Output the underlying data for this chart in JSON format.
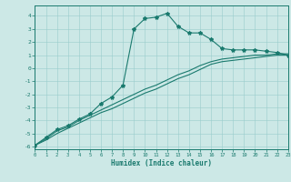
{
  "xlabel": "Humidex (Indice chaleur)",
  "bg_color": "#cce8e6",
  "line_color": "#1a7a6e",
  "grid_color": "#99cccc",
  "xlim": [
    0,
    23
  ],
  "ylim": [
    -6.2,
    4.8
  ],
  "xticks": [
    0,
    1,
    2,
    3,
    4,
    5,
    6,
    7,
    8,
    9,
    10,
    11,
    12,
    13,
    14,
    15,
    16,
    17,
    18,
    19,
    20,
    21,
    22,
    23
  ],
  "yticks": [
    -6,
    -5,
    -4,
    -3,
    -2,
    -1,
    0,
    1,
    2,
    3,
    4
  ],
  "line_straight1": {
    "x": [
      0,
      1,
      2,
      3,
      4,
      5,
      6,
      7,
      8,
      9,
      10,
      11,
      12,
      13,
      14,
      15,
      16,
      17,
      18,
      19,
      20,
      21,
      22,
      23
    ],
    "y": [
      -5.9,
      -5.5,
      -5.0,
      -4.6,
      -4.2,
      -3.8,
      -3.4,
      -3.1,
      -2.7,
      -2.3,
      -1.9,
      -1.6,
      -1.2,
      -0.8,
      -0.5,
      -0.1,
      0.3,
      0.5,
      0.6,
      0.7,
      0.8,
      0.9,
      1.0,
      1.0
    ]
  },
  "line_straight2": {
    "x": [
      0,
      1,
      2,
      3,
      4,
      5,
      6,
      7,
      8,
      9,
      10,
      11,
      12,
      13,
      14,
      15,
      16,
      17,
      18,
      19,
      20,
      21,
      22,
      23
    ],
    "y": [
      -5.9,
      -5.4,
      -4.8,
      -4.5,
      -4.0,
      -3.6,
      -3.2,
      -2.8,
      -2.4,
      -2.0,
      -1.6,
      -1.3,
      -0.9,
      -0.5,
      -0.2,
      0.2,
      0.5,
      0.7,
      0.8,
      0.9,
      1.0,
      1.0,
      1.1,
      1.1
    ]
  },
  "line_peak": {
    "x": [
      0,
      1,
      2,
      3,
      4,
      5,
      6,
      7,
      8,
      9,
      10,
      11,
      12,
      13,
      14,
      15,
      16,
      17,
      18,
      19,
      20,
      21,
      22,
      23
    ],
    "y": [
      -5.9,
      -5.3,
      -4.7,
      -4.4,
      -3.9,
      -3.5,
      -2.7,
      -2.2,
      -1.3,
      3.0,
      3.8,
      3.9,
      4.2,
      3.2,
      2.7,
      2.7,
      2.2,
      1.5,
      1.4,
      1.4,
      1.4,
      1.3,
      1.2,
      1.0
    ]
  }
}
